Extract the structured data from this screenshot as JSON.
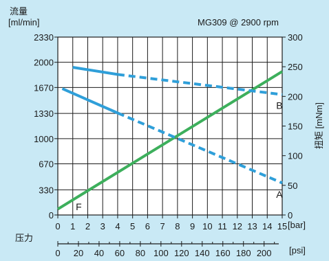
{
  "chart_data": {
    "type": "line",
    "title": "MG309 @ 2900 rpm",
    "y_left_label_cn": "流量",
    "y_left_unit": "[ml/min]",
    "y_right_label": "扭矩 [mNm]",
    "x_label_cn": "压力",
    "x_unit_bar": "[bar]",
    "x_unit_psi": "[psi]",
    "x_bar_ticks": [
      "0",
      "1",
      "2",
      "3",
      "4",
      "5",
      "6",
      "7",
      "8",
      "9",
      "10",
      "11",
      "12",
      "13",
      "14",
      "15"
    ],
    "x_psi_ticks": [
      "0",
      "20",
      "40",
      "60",
      "80",
      "100",
      "120",
      "140",
      "160",
      "180",
      "200"
    ],
    "x_psi_values": [
      0,
      20,
      40,
      60,
      80,
      100,
      120,
      140,
      160,
      180,
      200
    ],
    "y_left_ticks": [
      "0",
      "330",
      "670",
      "1000",
      "1330",
      "1670",
      "2000",
      "2330"
    ],
    "y_left_values": [
      0,
      330,
      670,
      1000,
      1330,
      1670,
      2000,
      2330
    ],
    "y_right_ticks": [
      "0",
      "50",
      "100",
      "150",
      "200",
      "250",
      "300"
    ],
    "y_right_values": [
      0,
      50,
      100,
      150,
      200,
      250,
      300
    ],
    "xlim": [
      0,
      15
    ],
    "ylim_left": [
      0,
      2330
    ],
    "ylim_right": [
      0,
      300
    ],
    "grid": true,
    "series": [
      {
        "name": "F",
        "axis": "right",
        "color": "#3daf5c",
        "style": "solid",
        "points": [
          [
            0,
            10
          ],
          [
            15,
            242
          ]
        ]
      },
      {
        "name": "B",
        "axis": "right",
        "color": "#2f9fd9",
        "segments": [
          {
            "style": "solid",
            "points": [
              [
                1,
                249
              ],
              [
                4,
                237
              ]
            ]
          },
          {
            "style": "dashed",
            "points": [
              [
                4,
                237
              ],
              [
                15,
                203
              ]
            ]
          }
        ]
      },
      {
        "name": "A",
        "axis": "right",
        "color": "#2f9fd9",
        "segments": [
          {
            "style": "solid",
            "points": [
              [
                0.3,
                213
              ],
              [
                4,
                172
              ]
            ]
          },
          {
            "style": "dashed",
            "points": [
              [
                4,
                172
              ],
              [
                15,
                54
              ]
            ]
          }
        ]
      }
    ],
    "annotations": [
      {
        "text": "F",
        "x": 1.2,
        "y_right": 14
      },
      {
        "text": "B",
        "x": 14.6,
        "y_right": 185
      },
      {
        "text": "A",
        "x": 14.6,
        "y_right": 35
      }
    ]
  }
}
